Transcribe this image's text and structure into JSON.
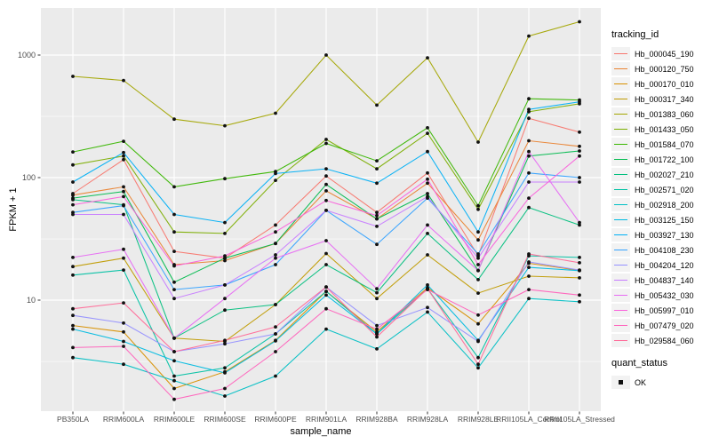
{
  "chart_data": {
    "type": "line",
    "xlabel": "sample_name",
    "ylabel": "FPKM + 1",
    "y_scale": "log10",
    "y_ticks": [
      10,
      100,
      1000
    ],
    "y_minor_ticks": [
      3.16,
      31.6,
      316
    ],
    "ylim": [
      1.4,
      2300
    ],
    "grid": true,
    "panel_bg": "#EBEBEB",
    "grid_color": "#FFFFFF",
    "tick_label_color": "#4D4D4D",
    "point_color": "#111111",
    "legend_title": "tracking_id",
    "legend_position": "right",
    "legend2_title": "quant_status",
    "legend2_items": [
      {
        "label": "OK",
        "color": "#111111"
      }
    ],
    "categories": [
      "PB350LA",
      "RRIM600LA",
      "RRIM600LE",
      "RRIM600SE",
      "RRIM600PE",
      "RRIM901LA",
      "RRIM928BA",
      "RRIM928LA",
      "RRIM928LE",
      "RRII105LA_Control",
      "RRII105LA_Stressed"
    ],
    "series": [
      {
        "name": "Hb_000045_190",
        "color": "#F8766D",
        "values": [
          74,
          140,
          25,
          22,
          41,
          103,
          52,
          109,
          23,
          305,
          235
        ]
      },
      {
        "name": "Hb_000120_750",
        "color": "#EA8331",
        "values": [
          72,
          84,
          19.5,
          21,
          29,
          78,
          46,
          90,
          31,
          200,
          180
        ]
      },
      {
        "name": "Hb_000170_010",
        "color": "#D89000",
        "values": [
          6.2,
          5.5,
          1.9,
          2.6,
          4.7,
          11.8,
          5.5,
          12.6,
          6.4,
          20,
          17.5
        ]
      },
      {
        "name": "Hb_000317_340",
        "color": "#C09B00",
        "values": [
          18.8,
          22,
          4.9,
          4.6,
          9.2,
          24,
          10.3,
          23.4,
          11.4,
          15.7,
          15.2
        ]
      },
      {
        "name": "Hb_001383_060",
        "color": "#A3A500",
        "values": [
          670,
          620,
          300,
          265,
          335,
          1000,
          390,
          950,
          195,
          1430,
          1870
        ]
      },
      {
        "name": "Hb_001433_050",
        "color": "#7CAE00",
        "values": [
          127,
          150,
          36,
          35,
          95,
          205,
          118,
          230,
          55,
          345,
          400
        ]
      },
      {
        "name": "Hb_001584_070",
        "color": "#39B600",
        "values": [
          162,
          198,
          84,
          98,
          112,
          190,
          137,
          255,
          59,
          440,
          430
        ]
      },
      {
        "name": "Hb_001722_100",
        "color": "#00BB4E",
        "values": [
          68,
          77,
          14,
          22,
          29,
          88,
          46,
          74,
          17.5,
          150,
          165
        ]
      },
      {
        "name": "Hb_002027_210",
        "color": "#00BF7D",
        "values": [
          66,
          60,
          4.9,
          8.3,
          9.2,
          19.5,
          11.5,
          35,
          14.7,
          57,
          41
        ]
      },
      {
        "name": "Hb_002571_020",
        "color": "#00C1A3",
        "values": [
          16,
          17.6,
          2.4,
          2.8,
          5.3,
          11.8,
          5.3,
          12.4,
          3.4,
          23,
          22.3
        ]
      },
      {
        "name": "Hb_002918_200",
        "color": "#00BFC4",
        "values": [
          3.4,
          3.0,
          2.2,
          1.65,
          2.4,
          5.8,
          4.0,
          8.0,
          2.8,
          10.3,
          9.7
        ]
      },
      {
        "name": "Hb_003125_150",
        "color": "#00BAE0",
        "values": [
          5.8,
          4.6,
          3.2,
          2.55,
          4.65,
          11,
          5.3,
          13.3,
          4.7,
          18.5,
          17.4
        ]
      },
      {
        "name": "Hb_003927_130",
        "color": "#00B0F6",
        "values": [
          92,
          160,
          50,
          43,
          108,
          118,
          90,
          163,
          36,
          360,
          415
        ]
      },
      {
        "name": "Hb_004108_230",
        "color": "#35A2FF",
        "values": [
          52,
          59,
          12.2,
          13.3,
          19.5,
          54,
          28.5,
          68,
          23.8,
          109,
          100
        ]
      },
      {
        "name": "Hb_004204_120",
        "color": "#9590FF",
        "values": [
          7.5,
          6.5,
          3.8,
          4.4,
          5.3,
          12.8,
          6.2,
          8.7,
          4.6,
          20.5,
          17.6
        ]
      },
      {
        "name": "Hb_004837_140",
        "color": "#C77CFF",
        "values": [
          50,
          50,
          10.3,
          13.3,
          23.4,
          54,
          40,
          70,
          22,
          92,
          92
        ]
      },
      {
        "name": "Hb_005432_030",
        "color": "#E76BF3",
        "values": [
          22.3,
          26,
          4.9,
          10.3,
          22,
          30.6,
          12.4,
          41,
          17.4,
          163,
          43
        ]
      },
      {
        "name": "Hb_005997_010",
        "color": "#FA62DB",
        "values": [
          60,
          70,
          19,
          23,
          36,
          65,
          49,
          97,
          19.5,
          68,
          150
        ]
      },
      {
        "name": "Hb_007479_020",
        "color": "#FF62BC",
        "values": [
          4.1,
          4.2,
          1.55,
          1.9,
          3.8,
          8.5,
          5.8,
          12.2,
          7.55,
          12.2,
          11
        ]
      },
      {
        "name": "Hb_029584_060",
        "color": "#FF6A98",
        "values": [
          8.5,
          9.5,
          3.8,
          4.7,
          6.05,
          12.8,
          5.0,
          12.4,
          3.0,
          23.8,
          20.2
        ]
      }
    ]
  }
}
